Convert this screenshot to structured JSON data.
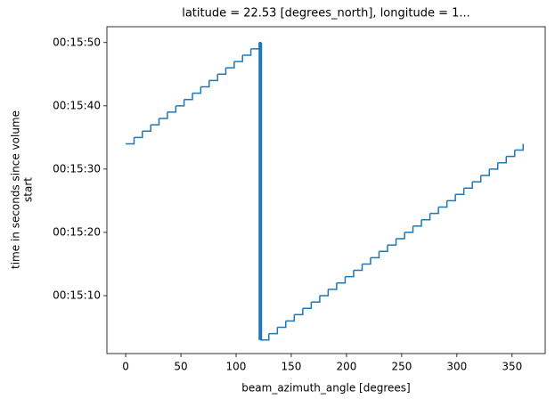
{
  "chart_data": {
    "type": "line",
    "drawstyle": "steps-post",
    "title": "latitude = 22.53 [degrees_north], longitude = 1...",
    "xlabel": "beam_azimuth_angle [degrees]",
    "ylabel": [
      "time in seconds since volume",
      "start"
    ],
    "xlim": [
      -17,
      380
    ],
    "xticks": [
      0,
      50,
      100,
      150,
      200,
      250,
      300,
      350
    ],
    "ylim": [
      900.85,
      952.5
    ],
    "yticks": [
      {
        "value": 910,
        "label": "00:15:10"
      },
      {
        "value": 920,
        "label": "00:15:20"
      },
      {
        "value": 930,
        "label": "00:15:30"
      },
      {
        "value": 940,
        "label": "00:15:40"
      },
      {
        "value": 950,
        "label": "00:15:50"
      }
    ],
    "series": [
      {
        "color": "#1f77b4",
        "x": [
          0,
          7.6,
          15.1,
          22.7,
          30.2,
          37.8,
          45.4,
          52.9,
          60.5,
          68,
          75.6,
          83.2,
          90.7,
          98.3,
          105.8,
          113.4,
          121,
          122,
          129.7,
          137.4,
          145,
          152.7,
          160.4,
          168.1,
          175.8,
          183.4,
          191.1,
          198.8,
          206.5,
          214.2,
          221.8,
          229.5,
          237.2,
          244.9,
          252.6,
          260.2,
          267.9,
          275.6,
          283.3,
          291,
          298.6,
          306.3,
          314,
          321.7,
          329.4,
          337,
          344.7,
          352.4,
          360
        ],
        "values": [
          934,
          935,
          936,
          937,
          938,
          939,
          940,
          941,
          942,
          943,
          944,
          945,
          946,
          947,
          948,
          949,
          950,
          903,
          904,
          905,
          906,
          907,
          908,
          909,
          910,
          911,
          912,
          913,
          914,
          915,
          916,
          917,
          918,
          919,
          920,
          921,
          922,
          923,
          924,
          925,
          926,
          927,
          928,
          929,
          930,
          931,
          932,
          933,
          934
        ]
      }
    ]
  }
}
